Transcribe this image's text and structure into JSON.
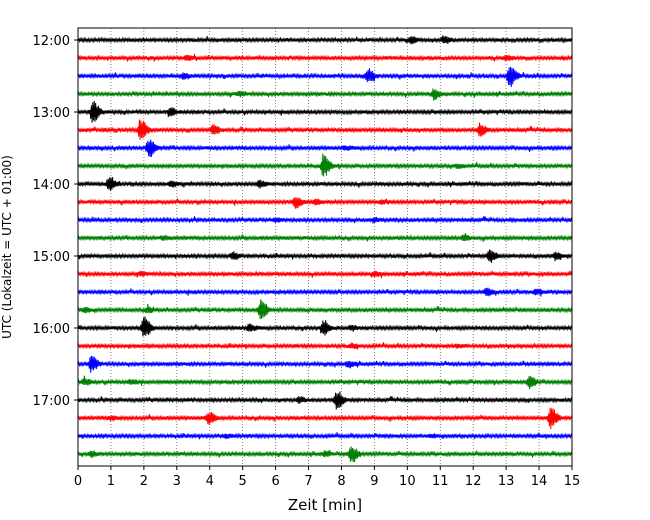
{
  "chart_data": {
    "type": "line",
    "title": "",
    "xlabel": "Zeit  [min]",
    "ylabel": "UTC (Lokalzeit = UTC + 01:00)",
    "xlim": [
      0,
      15
    ],
    "x_ticks": [
      0,
      1,
      2,
      3,
      4,
      5,
      6,
      7,
      8,
      9,
      10,
      11,
      12,
      13,
      14,
      15
    ],
    "y_ticks": [
      {
        "label": "12:00",
        "trace": 0
      },
      {
        "label": "13:00",
        "trace": 4
      },
      {
        "label": "14:00",
        "trace": 8
      },
      {
        "label": "15:00",
        "trace": 12
      },
      {
        "label": "16:00",
        "trace": 16
      },
      {
        "label": "17:00",
        "trace": 20
      }
    ],
    "grid": "vertical dotted",
    "trace_colors": [
      "#000000",
      "#ff0000",
      "#0000ff",
      "#008000"
    ],
    "traces": [
      {
        "start": "12:00",
        "events": [
          {
            "x": 10.1,
            "amp": 0.3
          },
          {
            "x": 11.1,
            "amp": 0.35
          }
        ]
      },
      {
        "start": "12:15",
        "events": [
          {
            "x": 3.3,
            "amp": 0.2
          },
          {
            "x": 13.0,
            "amp": 0.2
          }
        ]
      },
      {
        "start": "12:30",
        "events": [
          {
            "x": 8.8,
            "amp": 0.65
          },
          {
            "x": 13.1,
            "amp": 1.0
          },
          {
            "x": 3.2,
            "amp": 0.25
          }
        ]
      },
      {
        "start": "12:45",
        "events": [
          {
            "x": 10.8,
            "amp": 0.5
          },
          {
            "x": 4.9,
            "amp": 0.2
          }
        ]
      },
      {
        "start": "13:00",
        "events": [
          {
            "x": 0.45,
            "amp": 1.0
          },
          {
            "x": 2.8,
            "amp": 0.35
          }
        ]
      },
      {
        "start": "13:15",
        "events": [
          {
            "x": 1.9,
            "amp": 1.0
          },
          {
            "x": 4.1,
            "amp": 0.45
          },
          {
            "x": 12.2,
            "amp": 0.55
          }
        ]
      },
      {
        "start": "13:30",
        "events": [
          {
            "x": 2.15,
            "amp": 0.9
          },
          {
            "x": 8.1,
            "amp": 0.15
          }
        ]
      },
      {
        "start": "13:45",
        "events": [
          {
            "x": 7.45,
            "amp": 1.0
          },
          {
            "x": 11.5,
            "amp": 0.2
          }
        ]
      },
      {
        "start": "14:00",
        "events": [
          {
            "x": 0.95,
            "amp": 0.6
          },
          {
            "x": 2.8,
            "amp": 0.3
          },
          {
            "x": 5.5,
            "amp": 0.3
          }
        ]
      },
      {
        "start": "14:15",
        "events": [
          {
            "x": 6.6,
            "amp": 0.55
          },
          {
            "x": 7.2,
            "amp": 0.2
          },
          {
            "x": 9.2,
            "amp": 0.15
          }
        ]
      },
      {
        "start": "14:30",
        "events": [
          {
            "x": 6.0,
            "amp": 0.15
          },
          {
            "x": 9.0,
            "amp": 0.15
          }
        ]
      },
      {
        "start": "14:45",
        "events": [
          {
            "x": 11.7,
            "amp": 0.3
          },
          {
            "x": 2.6,
            "amp": 0.15
          }
        ]
      },
      {
        "start": "15:00",
        "events": [
          {
            "x": 4.7,
            "amp": 0.35
          },
          {
            "x": 12.5,
            "amp": 0.55
          },
          {
            "x": 14.5,
            "amp": 0.3
          }
        ]
      },
      {
        "start": "15:15",
        "events": [
          {
            "x": 1.9,
            "amp": 0.15
          },
          {
            "x": 9.0,
            "amp": 0.2
          }
        ]
      },
      {
        "start": "15:30",
        "events": [
          {
            "x": 12.4,
            "amp": 0.3
          },
          {
            "x": 13.9,
            "amp": 0.25
          }
        ]
      },
      {
        "start": "15:45",
        "events": [
          {
            "x": 5.55,
            "amp": 1.0
          },
          {
            "x": 2.1,
            "amp": 0.25
          },
          {
            "x": 0.2,
            "amp": 0.2
          }
        ]
      },
      {
        "start": "16:00",
        "events": [
          {
            "x": 2.0,
            "amp": 1.0
          },
          {
            "x": 7.45,
            "amp": 0.7
          },
          {
            "x": 5.2,
            "amp": 0.3
          },
          {
            "x": 8.3,
            "amp": 0.2
          }
        ]
      },
      {
        "start": "16:15",
        "events": [
          {
            "x": 8.3,
            "amp": 0.2
          },
          {
            "x": 11.5,
            "amp": 0.15
          }
        ]
      },
      {
        "start": "16:30",
        "events": [
          {
            "x": 0.4,
            "amp": 0.7
          },
          {
            "x": 8.2,
            "amp": 0.3
          }
        ]
      },
      {
        "start": "16:45",
        "events": [
          {
            "x": 13.7,
            "amp": 0.55
          },
          {
            "x": 0.2,
            "amp": 0.3
          },
          {
            "x": 1.6,
            "amp": 0.2
          }
        ]
      },
      {
        "start": "17:00",
        "events": [
          {
            "x": 7.85,
            "amp": 0.85
          },
          {
            "x": 6.7,
            "amp": 0.25
          }
        ]
      },
      {
        "start": "17:15",
        "events": [
          {
            "x": 3.95,
            "amp": 0.55
          },
          {
            "x": 14.35,
            "amp": 1.0
          },
          {
            "x": 1.0,
            "amp": 0.2
          }
        ]
      },
      {
        "start": "17:30",
        "events": [
          {
            "x": 4.5,
            "amp": 0.15
          },
          {
            "x": 10.7,
            "amp": 0.15
          }
        ]
      },
      {
        "start": "17:45",
        "events": [
          {
            "x": 8.3,
            "amp": 0.8
          },
          {
            "x": 7.5,
            "amp": 0.2
          },
          {
            "x": 0.4,
            "amp": 0.2
          }
        ]
      }
    ]
  }
}
